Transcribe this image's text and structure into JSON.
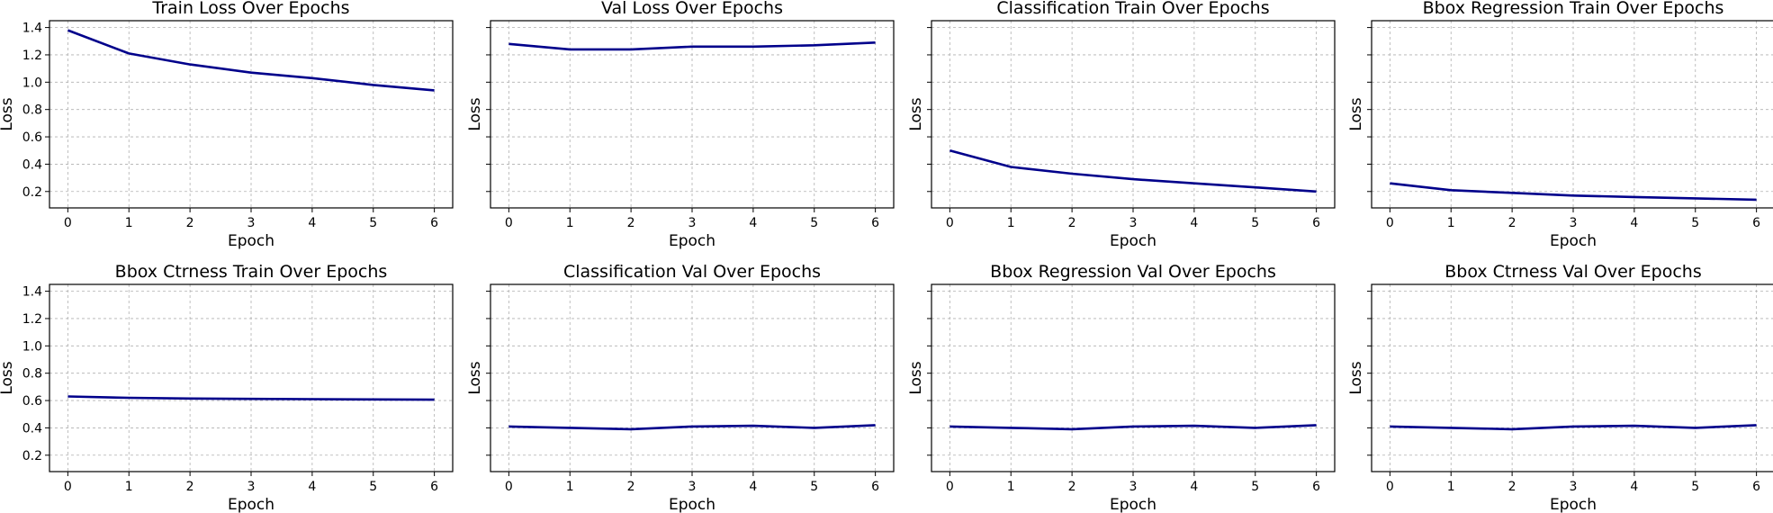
{
  "figure": {
    "axes_defaults": {
      "xlabel": "Epoch",
      "ylabel": "Loss"
    },
    "line_color": "#00008b",
    "y_ticks": [
      0.2,
      0.4,
      0.6,
      0.8,
      1.0,
      1.2,
      1.4
    ],
    "x_ticks": [
      0,
      1,
      2,
      3,
      4,
      5,
      6
    ]
  },
  "chart_data": [
    {
      "type": "line",
      "title": "Train Loss Over Epochs",
      "xlabel": "Epoch",
      "ylabel": "Loss",
      "x": [
        0,
        1,
        2,
        3,
        4,
        5,
        6
      ],
      "y": [
        1.38,
        1.21,
        1.13,
        1.07,
        1.03,
        0.98,
        0.94
      ],
      "xlim": [
        -0.3,
        6.3
      ],
      "ylim": [
        0.08,
        1.45
      ],
      "grid": true
    },
    {
      "type": "line",
      "title": "Val Loss Over Epochs",
      "xlabel": "Epoch",
      "ylabel": "Loss",
      "x": [
        0,
        1,
        2,
        3,
        4,
        5,
        6
      ],
      "y": [
        1.28,
        1.24,
        1.24,
        1.26,
        1.26,
        1.27,
        1.29
      ],
      "xlim": [
        -0.3,
        6.3
      ],
      "ylim": [
        0.08,
        1.45
      ],
      "grid": true
    },
    {
      "type": "line",
      "title": "Classification Train Over Epochs",
      "xlabel": "Epoch",
      "ylabel": "Loss",
      "x": [
        0,
        1,
        2,
        3,
        4,
        5,
        6
      ],
      "y": [
        0.5,
        0.38,
        0.33,
        0.29,
        0.26,
        0.23,
        0.2
      ],
      "xlim": [
        -0.3,
        6.3
      ],
      "ylim": [
        0.08,
        1.45
      ],
      "grid": true
    },
    {
      "type": "line",
      "title": "Bbox Regression Train Over Epochs",
      "xlabel": "Epoch",
      "ylabel": "Loss",
      "x": [
        0,
        1,
        2,
        3,
        4,
        5,
        6
      ],
      "y": [
        0.26,
        0.21,
        0.19,
        0.17,
        0.16,
        0.15,
        0.14
      ],
      "xlim": [
        -0.3,
        6.3
      ],
      "ylim": [
        0.08,
        1.45
      ],
      "grid": true
    },
    {
      "type": "line",
      "title": "Bbox Ctrness Train Over Epochs",
      "xlabel": "Epoch",
      "ylabel": "Loss",
      "x": [
        0,
        1,
        2,
        3,
        4,
        5,
        6
      ],
      "y": [
        0.63,
        0.62,
        0.615,
        0.612,
        0.61,
        0.608,
        0.606
      ],
      "xlim": [
        -0.3,
        6.3
      ],
      "ylim": [
        0.08,
        1.45
      ],
      "grid": true
    },
    {
      "type": "line",
      "title": "Classification Val Over Epochs",
      "xlabel": "Epoch",
      "ylabel": "Loss",
      "x": [
        0,
        1,
        2,
        3,
        4,
        5,
        6
      ],
      "y": [
        0.41,
        0.4,
        0.39,
        0.41,
        0.415,
        0.4,
        0.42
      ],
      "xlim": [
        -0.3,
        6.3
      ],
      "ylim": [
        0.08,
        1.45
      ],
      "grid": true
    },
    {
      "type": "line",
      "title": "Bbox Regression Val Over Epochs",
      "xlabel": "Epoch",
      "ylabel": "Loss",
      "x": [
        0,
        1,
        2,
        3,
        4,
        5,
        6
      ],
      "y": [
        0.41,
        0.4,
        0.39,
        0.41,
        0.415,
        0.4,
        0.42
      ],
      "xlim": [
        -0.3,
        6.3
      ],
      "ylim": [
        0.08,
        1.45
      ],
      "grid": true
    },
    {
      "type": "line",
      "title": "Bbox Ctrness Val Over Epochs",
      "xlabel": "Epoch",
      "ylabel": "Loss",
      "x": [
        0,
        1,
        2,
        3,
        4,
        5,
        6
      ],
      "y": [
        0.41,
        0.4,
        0.39,
        0.41,
        0.415,
        0.4,
        0.42
      ],
      "xlim": [
        -0.3,
        6.3
      ],
      "ylim": [
        0.08,
        1.45
      ],
      "grid": true
    }
  ]
}
